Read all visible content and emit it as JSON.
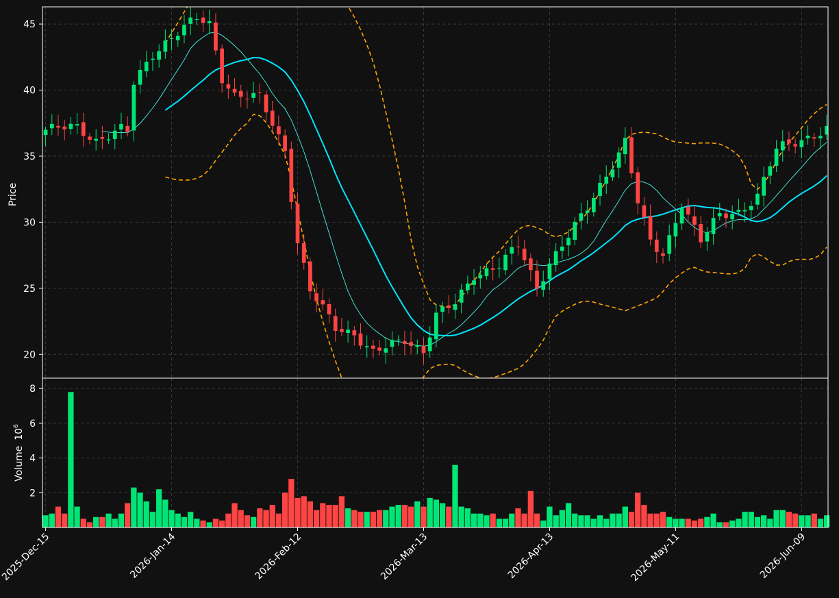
{
  "theme": {
    "background": "#111111",
    "grid_color": "#3a3a3a",
    "axis_color": "#ffffff",
    "up_color": "#00e676",
    "down_color": "#ff4444",
    "ma_fast_color": "#40e0d0",
    "ma_slow_color": "#00e5ff",
    "band_color": "#ffa500"
  },
  "chart_data": [
    {
      "type": "candlestick",
      "ylabel": "Price",
      "ylim": [
        18.2,
        46.3
      ],
      "yticks": [
        20,
        25,
        30,
        35,
        40,
        45
      ],
      "grid": true,
      "xticks": [
        {
          "index": 0,
          "label": "2025-Dec-15"
        },
        {
          "index": 20,
          "label": "2026-Jan-14"
        },
        {
          "index": 40,
          "label": "2026-Feb-12"
        },
        {
          "index": 60,
          "label": "2026-Mar-13"
        },
        {
          "index": 80,
          "label": "2026-Apr-13"
        },
        {
          "index": 100,
          "label": "2026-May-11"
        },
        {
          "index": 120,
          "label": "2026-Jun-09"
        }
      ],
      "ohlc": [],
      "overlays": [
        {
          "kind": "ma_fast",
          "style": "solid-thin"
        },
        {
          "kind": "ma_slow",
          "style": "solid"
        },
        {
          "kind": "upper_band",
          "style": "dashed"
        },
        {
          "kind": "lower_band",
          "style": "dashed"
        }
      ]
    },
    {
      "type": "bar",
      "ylabel": "Volume",
      "yscale_label": "10",
      "yscale_exp": "6",
      "ylim": [
        0,
        8.6
      ],
      "yticks": [
        2,
        4,
        6,
        8
      ],
      "values": [
        0.7,
        0.8,
        1.2,
        0.8,
        7.8,
        1.2,
        0.5,
        0.3,
        0.6,
        0.6,
        0.8,
        0.5,
        0.8,
        1.4,
        2.3,
        2.0,
        1.5,
        0.9,
        2.2,
        1.6,
        1.0,
        0.8,
        0.6,
        0.9,
        0.5,
        0.4,
        0.3,
        0.5,
        0.4,
        0.8,
        1.4,
        1.0,
        0.7,
        0.6,
        1.1,
        1.0,
        1.3,
        0.8,
        2.0,
        2.8,
        1.7,
        1.8,
        1.5,
        1.0,
        1.4,
        1.3,
        1.3,
        1.8,
        1.1,
        1.0,
        0.9,
        0.9,
        0.9,
        1.0,
        1.0,
        1.2,
        1.3,
        1.3,
        1.2,
        1.5,
        1.2,
        1.7,
        1.6,
        1.4,
        1.2,
        3.6,
        1.2,
        1.1,
        0.8,
        0.8,
        0.7,
        0.8,
        0.5,
        0.5,
        0.8,
        1.1,
        0.8,
        2.1,
        0.8,
        0.4,
        1.2,
        0.7,
        1.0,
        1.4,
        0.8,
        0.7,
        0.7,
        0.5,
        0.7,
        0.5,
        0.8,
        0.8,
        1.2,
        0.9,
        2.0,
        1.3,
        0.8,
        0.8,
        0.9,
        0.6,
        0.5,
        0.5,
        0.5,
        0.4,
        0.5,
        0.6,
        0.8,
        0.3,
        0.3,
        0.4,
        0.5,
        0.9,
        0.9,
        0.6,
        0.7,
        0.5,
        1.0,
        1.0,
        0.9,
        0.8,
        0.7,
        0.7,
        0.8,
        0.5,
        0.7
      ]
    }
  ]
}
